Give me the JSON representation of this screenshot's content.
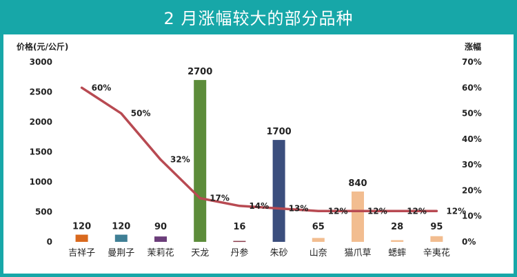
{
  "title": "2 月涨幅较大的部分品种",
  "chart_data": {
    "type": "bar",
    "title": "2 月涨幅较大的部分品种",
    "categories": [
      "吉祥子",
      "曼荆子",
      "茉莉花",
      "天龙",
      "丹参",
      "朱砂",
      "山奈",
      "猫爪草",
      "蟋蟀",
      "辛夷花"
    ],
    "ylabel": "价格(元/公斤)",
    "y2label": "涨幅",
    "ylim": [
      0,
      3000
    ],
    "y2lim": [
      0,
      70
    ],
    "yticks": [
      "0",
      "500",
      "1000",
      "1500",
      "2000",
      "2500",
      "3000"
    ],
    "y2ticks": [
      "0%",
      "10%",
      "20%",
      "30%",
      "40%",
      "50%",
      "60%",
      "70%"
    ],
    "series": [
      {
        "type": "bar",
        "values": [
          120,
          120,
          90,
          2700,
          16,
          1700,
          65,
          840,
          28,
          95
        ],
        "value_labels": [
          "120",
          "120",
          "90",
          "2700",
          "16",
          "1700",
          "65",
          "840",
          "28",
          "95"
        ],
        "colors": [
          "#d9691e",
          "#3f7f95",
          "#6b3d7a",
          "#5c8c3a",
          "#8a3b4a",
          "#3b4e7d",
          "#f2bd90",
          "#f2bd90",
          "#f2bd90",
          "#f2bd90"
        ]
      },
      {
        "type": "line",
        "axis": "right",
        "values": [
          60,
          50,
          32,
          17,
          14,
          13,
          12,
          12,
          12,
          12
        ],
        "value_labels": [
          "60%",
          "50%",
          "32%",
          "17%",
          "14%",
          "13%",
          "12%",
          "12%",
          "12%",
          "12%"
        ],
        "color": "#b84a52"
      }
    ]
  }
}
